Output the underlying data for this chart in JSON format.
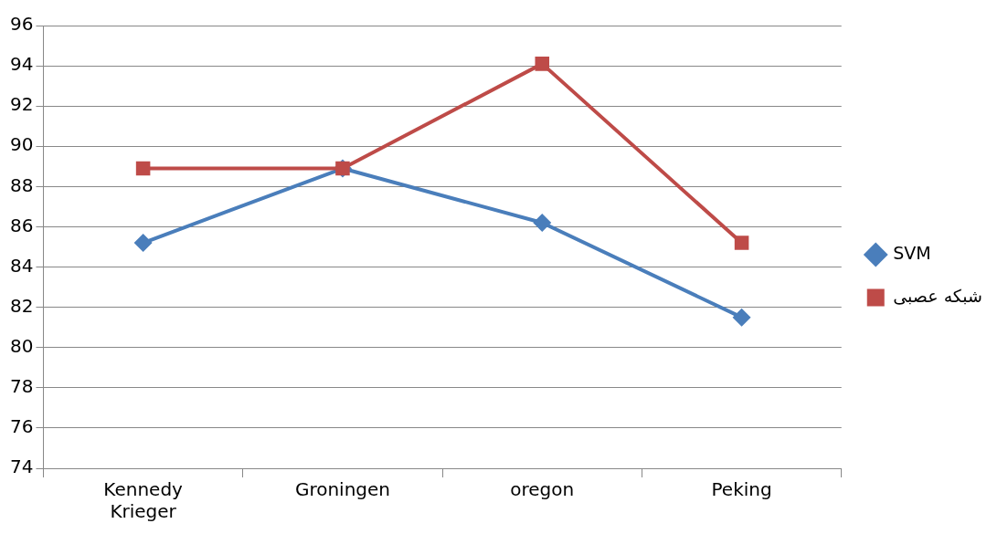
{
  "chart_data": {
    "type": "line",
    "categories": [
      "Kennedy Krieger",
      "Groningen",
      "oregon",
      "Peking"
    ],
    "series": [
      {
        "name": "SVM",
        "color": "#4a7ebb",
        "marker": "diamond",
        "values": [
          85.2,
          88.9,
          86.2,
          81.5
        ]
      },
      {
        "name": "شبکه عصبی",
        "color": "#be4b48",
        "marker": "square",
        "values": [
          88.9,
          88.9,
          94.1,
          85.2
        ]
      }
    ],
    "ylim": [
      74,
      96
    ],
    "yticks": [
      74,
      76,
      78,
      80,
      82,
      84,
      86,
      88,
      90,
      92,
      94,
      96
    ],
    "grid": "y",
    "legend": "right",
    "line_style": "solid"
  }
}
